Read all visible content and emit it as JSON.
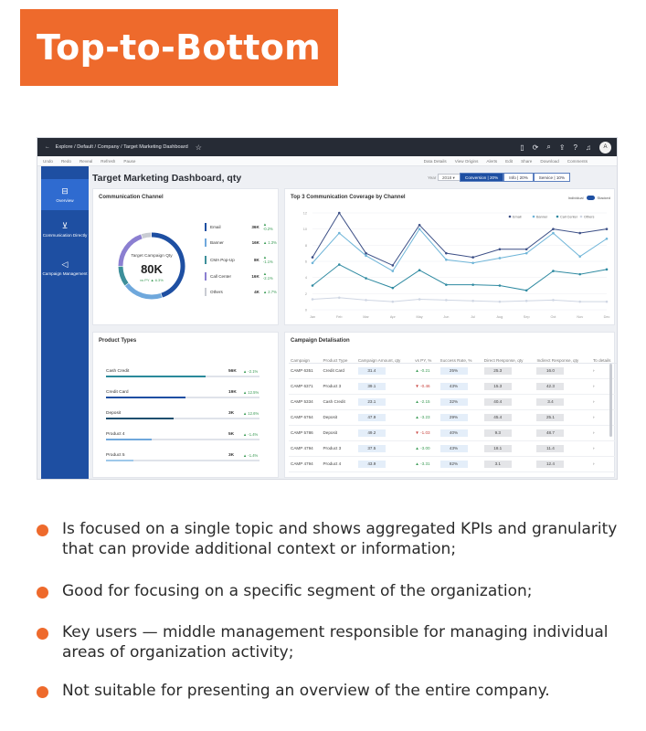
{
  "banner_title": "Top-to-Bottom",
  "app": {
    "breadcrumb": "Explore  /  Default  /  Company  /  Target Marketing Dashboard",
    "avatar": "A",
    "toolbar_left": [
      "Undo",
      "Redo",
      "Reveal",
      "Refresh",
      "Pause"
    ],
    "toolbar_right": [
      "Data Details",
      "View Origins",
      "Alerts",
      "Edit",
      "Share",
      "Download",
      "Comments"
    ],
    "title": "Target Marketing Dashboard, qty",
    "select_label": "Year",
    "select_value": "2018",
    "toggles": [
      "Conversion | 20%",
      "Info | 20%",
      "Service | 10%"
    ],
    "nav": [
      {
        "label": "Overview",
        "icon": "inbox-icon"
      },
      {
        "label": "Communication Directly",
        "icon": "chart-icon"
      },
      {
        "label": "Campaign Management",
        "icon": "megaphone-icon"
      }
    ]
  },
  "communication_channel": {
    "title": "Communication Channel",
    "donut_label": "Target Campaign Qty",
    "donut_value": "80K",
    "donut_delta": "vs PY  ▲ 6.3%",
    "rows": [
      {
        "name": "Email",
        "value": "36K",
        "delta": "▲ -0.2%",
        "color": "#1e4fa2",
        "share": 0.45
      },
      {
        "name": "Banner",
        "value": "16K",
        "delta": "▲ 1.3%",
        "color": "#6fa8dc",
        "share": 0.2
      },
      {
        "name": "CMA Pop-Up",
        "value": "8K",
        "delta": "▲ -1.1%",
        "color": "#3d8f9a",
        "share": 0.1
      },
      {
        "name": "Call Center",
        "value": "16K",
        "delta": "▲ -2.1%",
        "color": "#8b7fd1",
        "share": 0.2
      },
      {
        "name": "Others",
        "value": "4K",
        "delta": "▲ 2.7%",
        "color": "#c9ccd3",
        "share": 0.05
      }
    ]
  },
  "coverage_chart": {
    "title": "Top 3 Communication Coverage by Channel",
    "toggle_left": "Individual",
    "toggle_right": "Stacked",
    "legend": [
      "Email",
      "Banner",
      "Call Center",
      "Others"
    ]
  },
  "chart_data": {
    "type": "line",
    "title": "Top 3 Communication Coverage by Channel",
    "categories": [
      "Jan",
      "Feb",
      "Mar",
      "Apr",
      "May",
      "Jun",
      "Jul",
      "Aug",
      "Sep",
      "Oct",
      "Nov",
      "Dec"
    ],
    "ylim": [
      0,
      12
    ],
    "yticks": [
      0,
      2,
      4,
      6,
      8,
      10,
      12
    ],
    "series": [
      {
        "name": "Email",
        "color": "#3c4f86",
        "values": [
          6.5,
          12.0,
          7.0,
          5.5,
          10.5,
          7.0,
          6.5,
          7.5,
          7.5,
          10.0,
          9.5,
          10.0
        ]
      },
      {
        "name": "Banner",
        "color": "#6fb5d8",
        "values": [
          5.8,
          9.5,
          6.7,
          4.8,
          10.0,
          6.2,
          5.8,
          6.4,
          7.0,
          9.5,
          6.6,
          8.8
        ]
      },
      {
        "name": "Call Center",
        "color": "#2f8aa1",
        "values": [
          3.0,
          5.6,
          3.9,
          2.7,
          4.9,
          3.1,
          3.1,
          3.0,
          2.4,
          4.8,
          4.4,
          5.0
        ]
      },
      {
        "name": "Others",
        "color": "#cfd6e3",
        "values": [
          1.3,
          1.5,
          1.2,
          1.0,
          1.3,
          1.2,
          1.1,
          1.0,
          1.1,
          1.2,
          1.0,
          1.0
        ]
      }
    ]
  },
  "product_types": {
    "title": "Product Types",
    "rows": [
      {
        "name": "Cash Credit",
        "value": "56K",
        "delta": "▲ -2.1%",
        "color": "#2a8a9a",
        "share": 0.65
      },
      {
        "name": "Credit Card",
        "value": "19K",
        "delta": "▲ 12.5%",
        "color": "#1e4fa2",
        "share": 0.52
      },
      {
        "name": "Deposit",
        "value": "3K",
        "delta": "▲ 12.6%",
        "color": "#1f4f6e",
        "share": 0.44
      },
      {
        "name": "Product 4",
        "value": "5K",
        "delta": "▲ -1.4%",
        "color": "#6fa8dc",
        "share": 0.3
      },
      {
        "name": "Product 5",
        "value": "3K",
        "delta": "▲ -1.4%",
        "color": "#9ec8ea",
        "share": 0.18
      }
    ]
  },
  "campaign_detalisation": {
    "title": "Campaign Detalisation",
    "headers": [
      "Campaign",
      "Product Type",
      "Campaign Amount, qty",
      "vs PY, %",
      "Success Rate, %",
      "Direct Response, qty",
      "Indirect Response, qty",
      "To details"
    ],
    "rows": [
      [
        "CAMP 6351",
        "Credit Card",
        "31.4",
        "▲ -0.21",
        "25%",
        "25.3",
        "16.0",
        "›"
      ],
      [
        "CAMP 6371",
        "Product 3",
        "39.1",
        "▼ -0.46",
        "43%",
        "15.3",
        "42.3",
        "›"
      ],
      [
        "CAMP 5334",
        "Cash Credit",
        "23.1",
        "▲ -2.15",
        "32%",
        "40.4",
        "3.4",
        "›"
      ],
      [
        "CAMP 6764",
        "Deposit",
        "47.9",
        "▲ -3.23",
        "29%",
        "45.4",
        "25.1",
        "›"
      ],
      [
        "CAMP 5786",
        "Deposit",
        "49.2",
        "▼ -1.03",
        "40%",
        "9.3",
        "48.7",
        "›"
      ],
      [
        "CAMP 4794",
        "Product 3",
        "37.5",
        "▲ -3.00",
        "43%",
        "18.1",
        "11.4",
        "›"
      ],
      [
        "CAMP 4794",
        "Product 4",
        "43.9",
        "▲ -3.31",
        "82%",
        "3.1",
        "12.4",
        "›"
      ]
    ]
  },
  "bullets": [
    "Is focused on a single topic and shows aggregated KPIs and granularity that can provide additional context or information;",
    "Good for focusing on a specific segment of the organization;",
    "Key users — middle management responsible for managing individual areas of organization activity;",
    "Not suitable for presenting an overview of the entire company."
  ]
}
